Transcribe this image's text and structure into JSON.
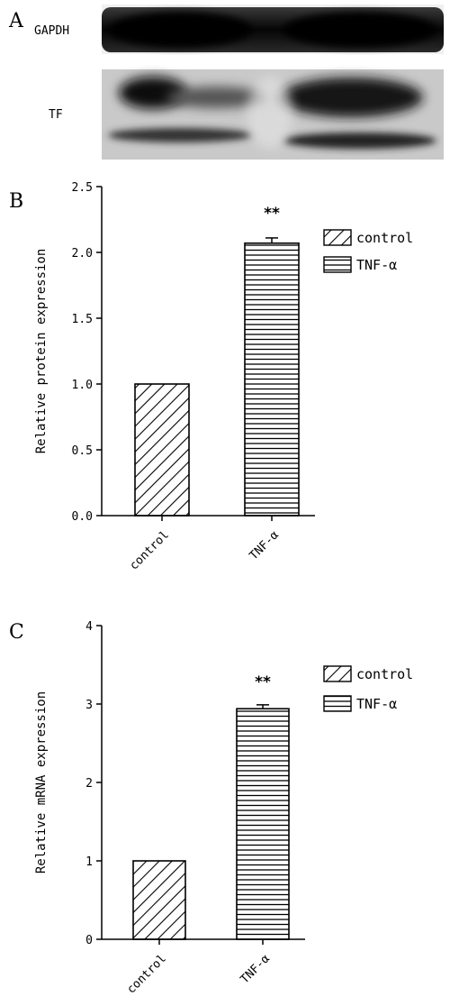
{
  "panels": {
    "a": {
      "letter": "A",
      "bands": [
        {
          "label": "GAPDH"
        },
        {
          "label": "TF"
        }
      ]
    }
  },
  "chart_data": [
    {
      "type": "bar",
      "panel_letter": "B",
      "categories": [
        "control",
        "TNF-α"
      ],
      "series": [
        {
          "values": [
            1.0,
            2.07
          ],
          "errors": [
            0,
            0.04
          ]
        }
      ],
      "ylabel": "Relative protein expression",
      "ylim": [
        0,
        2.5
      ],
      "yticks": [
        "0.0",
        "0.5",
        "1.0",
        "1.5",
        "2.0",
        "2.5"
      ],
      "ytick_values": [
        0,
        0.5,
        1.0,
        1.5,
        2.0,
        2.5
      ],
      "annotations": [
        {
          "category": "TNF-α",
          "text": "**"
        }
      ],
      "legend": {
        "position": "right",
        "entries": [
          {
            "label": "control",
            "pattern": "diagonal-hatch"
          },
          {
            "label": "TNF-α",
            "pattern": "horizontal-lines"
          }
        ]
      },
      "grid": false
    },
    {
      "type": "bar",
      "panel_letter": "C",
      "categories": [
        "control",
        "TNF-α"
      ],
      "series": [
        {
          "values": [
            1.0,
            2.94
          ],
          "errors": [
            0,
            0.05
          ]
        }
      ],
      "ylabel": "Relative mRNA expression",
      "ylim": [
        0,
        4
      ],
      "yticks": [
        "0",
        "1",
        "2",
        "3",
        "4"
      ],
      "ytick_values": [
        0,
        1,
        2,
        3,
        4
      ],
      "annotations": [
        {
          "category": "TNF-α",
          "text": "**"
        }
      ],
      "legend": {
        "position": "right",
        "entries": [
          {
            "label": "control",
            "pattern": "diagonal-hatch"
          },
          {
            "label": "TNF-α",
            "pattern": "horizontal-lines"
          }
        ]
      },
      "grid": false
    }
  ]
}
